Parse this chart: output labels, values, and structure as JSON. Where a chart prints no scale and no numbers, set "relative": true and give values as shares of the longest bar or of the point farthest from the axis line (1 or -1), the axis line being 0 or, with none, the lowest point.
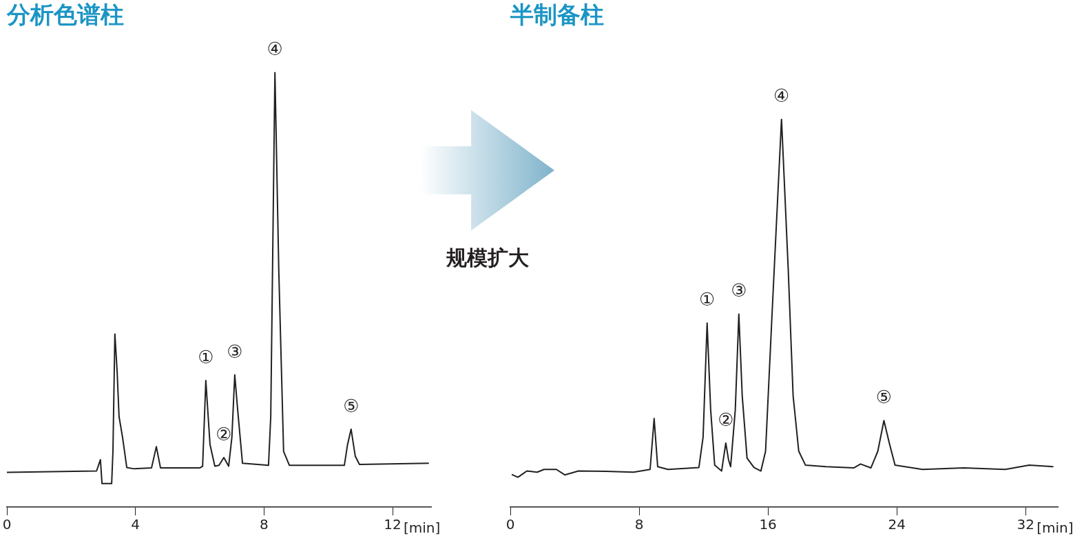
{
  "chart_data": [
    {
      "type": "line",
      "title": "分析色谱柱",
      "relative": true,
      "xlim": [
        0,
        13.2
      ],
      "xticks": [
        0,
        4,
        8,
        12
      ],
      "xlabel": "[min]",
      "x": [
        0,
        2.79,
        2.91,
        2.96,
        3.26,
        3.3,
        3.36,
        3.43,
        3.49,
        3.6,
        3.73,
        3.96,
        4.5,
        4.65,
        4.78,
        6.0,
        6.09,
        6.19,
        6.32,
        6.47,
        6.6,
        6.75,
        6.9,
        7.0,
        7.09,
        7.18,
        7.33,
        8.14,
        8.21,
        8.34,
        8.46,
        8.61,
        8.79,
        10.5,
        10.6,
        10.71,
        10.84,
        10.97,
        13.13
      ],
      "series": [
        {
          "color": "#231f20",
          "values": [
            0.08,
            0.083,
            0.109,
            0.054,
            0.054,
            0.128,
            0.398,
            0.312,
            0.208,
            0.16,
            0.091,
            0.088,
            0.09,
            0.139,
            0.09,
            0.09,
            0.094,
            0.291,
            0.144,
            0.094,
            0.096,
            0.114,
            0.094,
            0.16,
            0.304,
            0.224,
            0.101,
            0.096,
            0.208,
            1,
            0.544,
            0.128,
            0.096,
            0.096,
            0.144,
            0.179,
            0.117,
            0.098,
            0.101
          ]
        }
      ],
      "annotations": [
        {
          "text": "①",
          "x": 6.19,
          "y": 0.291
        },
        {
          "text": "②",
          "x": 6.75,
          "y": 0.114
        },
        {
          "text": "③",
          "x": 7.09,
          "y": 0.304
        },
        {
          "text": "④",
          "x": 8.34,
          "y": 1
        },
        {
          "text": "⑤",
          "x": 10.71,
          "y": 0.179
        }
      ]
    },
    {
      "type": "other",
      "annotations": [
        "规模扩大"
      ]
    },
    {
      "type": "line",
      "title": "半制备柱",
      "relative": true,
      "xlim": [
        0,
        34
      ],
      "xticks": [
        0,
        8,
        16,
        24,
        32
      ],
      "xlabel": "[min]",
      "x": [
        0.09,
        0.47,
        1.03,
        1.67,
        2.09,
        2.86,
        3.38,
        4.23,
        5.94,
        7.65,
        8.68,
        8.93,
        9.15,
        9.79,
        11.71,
        11.97,
        12.22,
        12.44,
        12.69,
        13.12,
        13.38,
        13.55,
        13.68,
        13.97,
        14.19,
        14.4,
        14.7,
        15.13,
        15.56,
        15.85,
        16.28,
        16.84,
        17.26,
        17.56,
        17.91,
        18.33,
        19.62,
        21.32,
        21.75,
        22.39,
        22.82,
        23.2,
        23.55,
        23.89,
        25.6,
        28.16,
        30.73,
        32.22,
        33.72
      ],
      "series": [
        {
          "color": "#231f20",
          "values": [
            0.084,
            0.077,
            0.093,
            0.09,
            0.097,
            0.097,
            0.083,
            0.093,
            0.092,
            0.09,
            0.097,
            0.228,
            0.104,
            0.097,
            0.102,
            0.18,
            0.474,
            0.251,
            0.108,
            0.093,
            0.165,
            0.122,
            0.104,
            0.251,
            0.497,
            0.287,
            0.126,
            0.102,
            0.093,
            0.144,
            0.521,
            1,
            0.61,
            0.287,
            0.144,
            0.108,
            0.104,
            0.101,
            0.111,
            0.101,
            0.144,
            0.223,
            0.162,
            0.108,
            0.097,
            0.101,
            0.097,
            0.108,
            0.104
          ]
        }
      ],
      "annotations": [
        {
          "text": "①",
          "x": 12.22,
          "y": 0.474
        },
        {
          "text": "②",
          "x": 13.38,
          "y": 0.165
        },
        {
          "text": "③",
          "x": 14.19,
          "y": 0.497
        },
        {
          "text": "④",
          "x": 16.84,
          "y": 1
        },
        {
          "text": "⑤",
          "x": 23.2,
          "y": 0.223
        }
      ]
    }
  ]
}
